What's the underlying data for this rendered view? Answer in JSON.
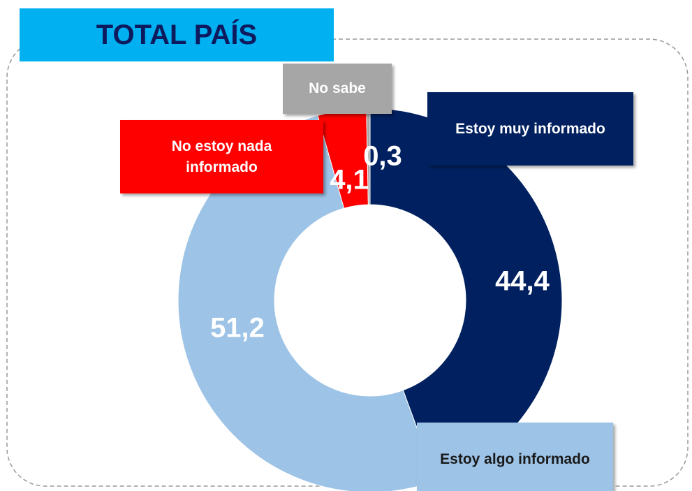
{
  "chart_data": {
    "type": "donut",
    "title": "TOTAL PAÍS",
    "categories": [
      "Estoy muy informado",
      "Estoy algo informado",
      "No estoy nada informado",
      "No sabe"
    ],
    "values": [
      44.4,
      51.2,
      4.1,
      0.3
    ],
    "value_labels": [
      "44,4",
      "51,2",
      "4,1",
      "0,3"
    ],
    "colors": [
      "#002060",
      "#9dc3e6",
      "#ff0000",
      "#a6a6a6"
    ]
  }
}
